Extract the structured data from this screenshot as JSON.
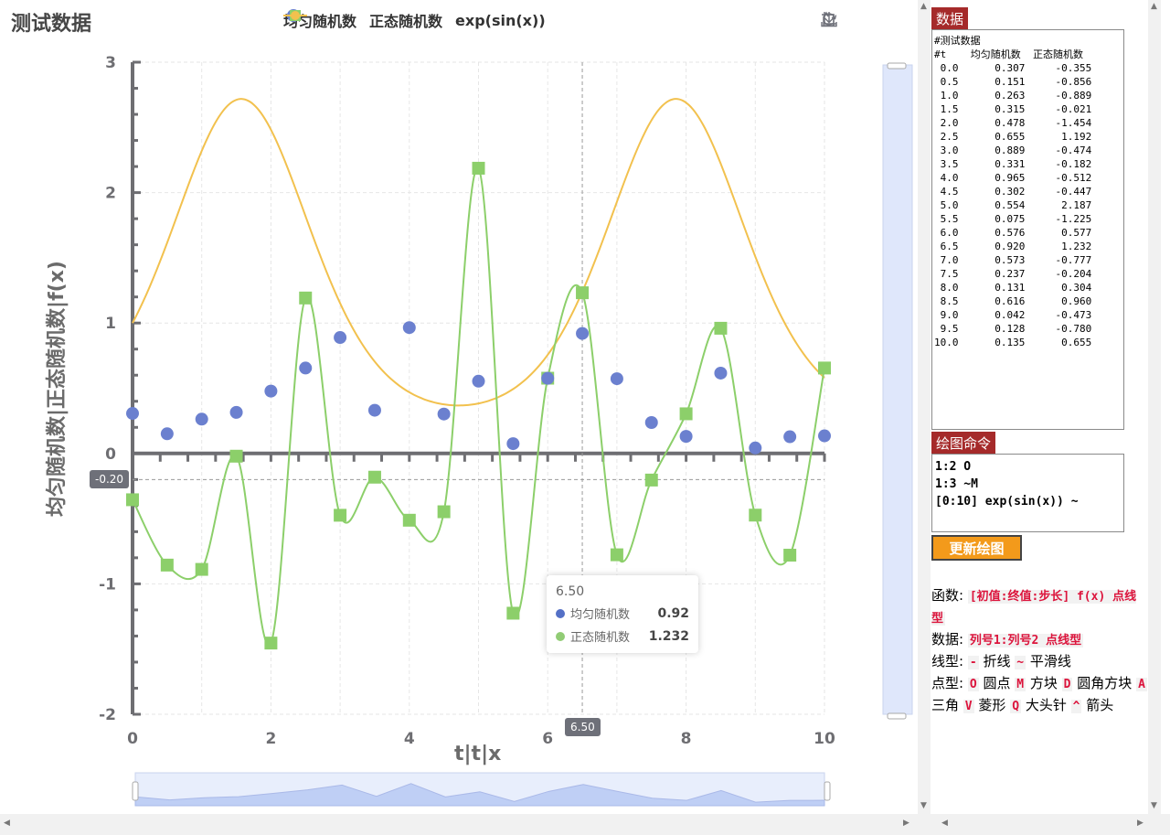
{
  "title": "测试数据",
  "legend": [
    {
      "name": "均匀随机数",
      "color": "#6b80cf"
    },
    {
      "name": "正态随机数",
      "color": "#8ccf6a"
    },
    {
      "name": "exp(sin(x))",
      "color": "#f2c14e"
    }
  ],
  "toolbox": [
    "zoom-icon",
    "zoom-reset-icon",
    "restore-icon",
    "save-image-icon"
  ],
  "chart_data": {
    "type": "line",
    "xlabel": "t|t|x",
    "ylabel": "均匀随机数|正态随机数|f(x)",
    "xlim": [
      0,
      10
    ],
    "ylim": [
      -2,
      3
    ],
    "x_ticks": [
      0,
      2,
      4,
      6,
      8,
      10
    ],
    "y_ticks": [
      -2,
      -1,
      0,
      1,
      2,
      3
    ],
    "grid": true,
    "legend_position": "top-center",
    "x": [
      0.0,
      0.5,
      1.0,
      1.5,
      2.0,
      2.5,
      3.0,
      3.5,
      4.0,
      4.5,
      5.0,
      5.5,
      6.0,
      6.5,
      7.0,
      7.5,
      8.0,
      8.5,
      9.0,
      9.5,
      10.0
    ],
    "series": [
      {
        "name": "均匀随机数",
        "marker": "circle",
        "line": "none",
        "color": "#6b80cf",
        "values": [
          0.307,
          0.151,
          0.263,
          0.315,
          0.478,
          0.655,
          0.889,
          0.331,
          0.965,
          0.302,
          0.554,
          0.075,
          0.576,
          0.92,
          0.573,
          0.237,
          0.131,
          0.616,
          0.042,
          0.128,
          0.135
        ]
      },
      {
        "name": "正态随机数",
        "marker": "square",
        "line": "smooth",
        "color": "#8ccf6a",
        "values": [
          -0.355,
          -0.856,
          -0.889,
          -0.021,
          -1.454,
          1.192,
          -0.474,
          -0.182,
          -0.512,
          -0.447,
          2.187,
          -1.225,
          0.577,
          1.232,
          -0.777,
          -0.204,
          0.304,
          0.96,
          -0.473,
          -0.78,
          0.655
        ]
      },
      {
        "name": "exp(sin(x))",
        "marker": "none",
        "line": "smooth",
        "color": "#f2c14e",
        "function": "exp(sin(x))",
        "range": [
          0,
          10
        ]
      }
    ]
  },
  "tooltip": {
    "title": "6.50",
    "rows": [
      {
        "name": "均匀随机数",
        "value": "0.92",
        "color": "#5470c6"
      },
      {
        "name": "正态随机数",
        "value": "1.232",
        "color": "#91cc75"
      }
    ]
  },
  "axis_pointer": {
    "x_label": "6.50",
    "y_label": "-0.20"
  },
  "panel": {
    "data_label": "数据",
    "data_text": "#测试数据\n#t    均匀随机数  正态随机数\n 0.0      0.307     -0.355\n 0.5      0.151     -0.856\n 1.0      0.263     -0.889\n 1.5      0.315     -0.021\n 2.0      0.478     -1.454\n 2.5      0.655      1.192\n 3.0      0.889     -0.474\n 3.5      0.331     -0.182\n 4.0      0.965     -0.512\n 4.5      0.302     -0.447\n 5.0      0.554      2.187\n 5.5      0.075     -1.225\n 6.0      0.576      0.577\n 6.5      0.920      1.232\n 7.0      0.573     -0.777\n 7.5      0.237     -0.204\n 8.0      0.131      0.304\n 8.5      0.616      0.960\n 9.0      0.042     -0.473\n 9.5      0.128     -0.780\n10.0      0.135      0.655",
    "cmd_label": "绘图命令",
    "cmd_text": "1:2 O\n1:3 ~M\n[0:10] exp(sin(x)) ~",
    "update_button": "更新绘图",
    "help": {
      "func_label": "函数:",
      "func_code": "[初值:终值:步长] f(x) 点线型",
      "data_label": "数据:",
      "data_code": "列号1:列号2 点线型",
      "line_label": "线型:",
      "line_items": [
        {
          "code": "-",
          "text": "折线"
        },
        {
          "code": "~",
          "text": "平滑线"
        }
      ],
      "point_label": "点型:",
      "point_items": [
        {
          "code": "O",
          "text": "圆点"
        },
        {
          "code": "M",
          "text": "方块"
        },
        {
          "code": "D",
          "text": "圆角方块"
        },
        {
          "code": "A",
          "text": "三角"
        },
        {
          "code": "V",
          "text": "菱形"
        },
        {
          "code": "Q",
          "text": "大头针"
        },
        {
          "code": "^",
          "text": "箭头"
        }
      ]
    }
  }
}
